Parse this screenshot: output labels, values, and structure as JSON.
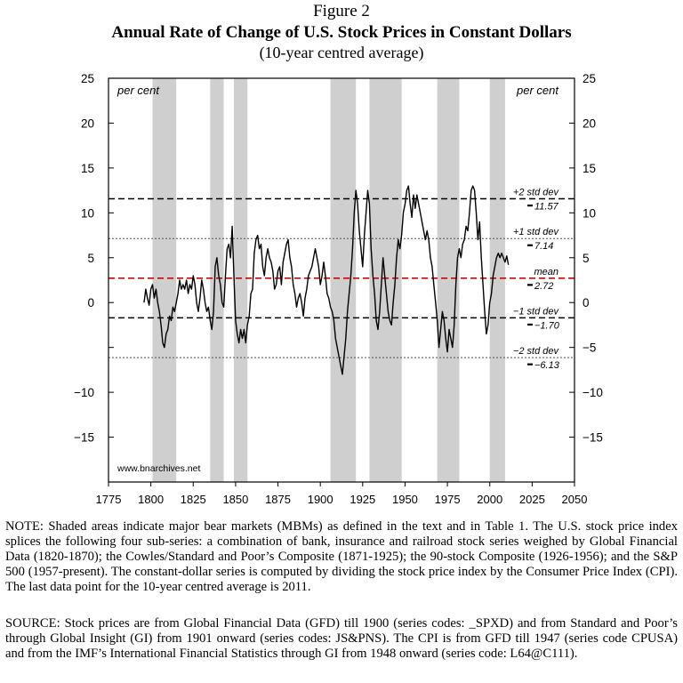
{
  "figure_label": "Figure 2",
  "chart_data": {
    "type": "line",
    "title": "Annual Rate of Change of U.S. Stock Prices in Constant Dollars",
    "subtitle": "(10-year centred average)",
    "xlabel": "",
    "ylabel_left": "per cent",
    "ylabel_right": "per cent",
    "xlim": [
      1775,
      2050
    ],
    "ylim": [
      -20,
      25
    ],
    "x_ticks": [
      "1775",
      "1800",
      "1825",
      "1850",
      "1875",
      "1900",
      "1925",
      "1950",
      "1975",
      "2000",
      "2025",
      "2050"
    ],
    "y_ticks_left": [
      "25",
      "20",
      "15",
      "10",
      "5",
      "0",
      "−10",
      "−15"
    ],
    "y_ticks_right": [
      "25",
      "20",
      "15",
      "10",
      "5",
      "0",
      "−5",
      "−10",
      "−15"
    ],
    "y_tick_values_left": [
      25,
      20,
      15,
      10,
      5,
      0,
      -10,
      -15
    ],
    "y_tick_values_right": [
      25,
      20,
      15,
      10,
      5,
      0,
      -5,
      -10,
      -15
    ],
    "y_tick_unlabeled": [
      -5
    ],
    "bear_markets": [
      [
        1801,
        1815
      ],
      [
        1835,
        1843
      ],
      [
        1849,
        1857
      ],
      [
        1906,
        1921
      ],
      [
        1929,
        1948
      ],
      [
        1969,
        1982
      ],
      [
        2000,
        2009
      ]
    ],
    "shade_color": "#cfcfcf",
    "reference_lines": [
      {
        "label": "+2 std dev",
        "value_label": "11.57",
        "value": 11.57,
        "style": "dash",
        "color": "#000000"
      },
      {
        "label": "+1 std dev",
        "value_label": "7.14",
        "value": 7.14,
        "style": "dot",
        "color": "#555555"
      },
      {
        "label": "mean",
        "value_label": "2.72",
        "value": 2.72,
        "style": "dash",
        "color": "#d40000"
      },
      {
        "label": "−1 std dev",
        "value_label": "−1.70",
        "value": -1.7,
        "style": "dash",
        "color": "#000000"
      },
      {
        "label": "−2 std dev",
        "value_label": "−6.13",
        "value": -6.13,
        "style": "dot",
        "color": "#555555"
      }
    ],
    "series": [
      {
        "line_color": "#000000",
        "points": [
          [
            1796,
            0
          ],
          [
            1797,
            1.5
          ],
          [
            1798,
            0.5
          ],
          [
            1799,
            -0.3
          ],
          [
            1800,
            1.5
          ],
          [
            1801,
            2
          ],
          [
            1802,
            0.5
          ],
          [
            1803,
            1.5
          ],
          [
            1804,
            0
          ],
          [
            1805,
            -1
          ],
          [
            1806,
            -2.5
          ],
          [
            1807,
            -4.5
          ],
          [
            1808,
            -5
          ],
          [
            1809,
            -3.5
          ],
          [
            1810,
            -3
          ],
          [
            1811,
            -1.5
          ],
          [
            1812,
            -2
          ],
          [
            1813,
            -0.5
          ],
          [
            1814,
            -1
          ],
          [
            1815,
            0
          ],
          [
            1816,
            1
          ],
          [
            1817,
            2.5
          ],
          [
            1818,
            1.5
          ],
          [
            1819,
            2
          ],
          [
            1820,
            1.5
          ],
          [
            1821,
            2.5
          ],
          [
            1822,
            1
          ],
          [
            1823,
            2
          ],
          [
            1824,
            1.5
          ],
          [
            1825,
            3
          ],
          [
            1826,
            2
          ],
          [
            1827,
            0
          ],
          [
            1828,
            -1
          ],
          [
            1829,
            0.5
          ],
          [
            1830,
            2.5
          ],
          [
            1831,
            1.5
          ],
          [
            1832,
            0
          ],
          [
            1833,
            -1
          ],
          [
            1834,
            -0.5
          ],
          [
            1835,
            -2
          ],
          [
            1836,
            -3
          ],
          [
            1837,
            -1
          ],
          [
            1838,
            4
          ],
          [
            1839,
            5
          ],
          [
            1840,
            3
          ],
          [
            1841,
            2
          ],
          [
            1842,
            0
          ],
          [
            1843,
            -0.5
          ],
          [
            1844,
            3
          ],
          [
            1845,
            6
          ],
          [
            1846,
            6.5
          ],
          [
            1847,
            5
          ],
          [
            1848,
            8.5
          ],
          [
            1849,
            3
          ],
          [
            1850,
            -2
          ],
          [
            1851,
            -3.5
          ],
          [
            1852,
            -4.5
          ],
          [
            1853,
            -3
          ],
          [
            1854,
            -4
          ],
          [
            1855,
            -3
          ],
          [
            1856,
            -4.5
          ],
          [
            1857,
            -2.5
          ],
          [
            1858,
            -1.5
          ],
          [
            1859,
            1
          ],
          [
            1860,
            1.5
          ],
          [
            1861,
            5.5
          ],
          [
            1862,
            7
          ],
          [
            1863,
            7.5
          ],
          [
            1864,
            6
          ],
          [
            1865,
            6.5
          ],
          [
            1866,
            4
          ],
          [
            1867,
            3
          ],
          [
            1868,
            5
          ],
          [
            1869,
            6
          ],
          [
            1870,
            5
          ],
          [
            1871,
            4.5
          ],
          [
            1872,
            3.5
          ],
          [
            1873,
            1.5
          ],
          [
            1874,
            2
          ],
          [
            1875,
            3.5
          ],
          [
            1876,
            4
          ],
          [
            1877,
            2
          ],
          [
            1878,
            4.5
          ],
          [
            1879,
            5.5
          ],
          [
            1880,
            6.5
          ],
          [
            1881,
            7
          ],
          [
            1882,
            5
          ],
          [
            1883,
            4
          ],
          [
            1884,
            2
          ],
          [
            1885,
            1
          ],
          [
            1886,
            -0.5
          ],
          [
            1887,
            0.5
          ],
          [
            1888,
            1
          ],
          [
            1889,
            0
          ],
          [
            1890,
            -1.5
          ],
          [
            1891,
            0.5
          ],
          [
            1892,
            1.5
          ],
          [
            1893,
            3
          ],
          [
            1894,
            3.5
          ],
          [
            1895,
            4
          ],
          [
            1896,
            5
          ],
          [
            1897,
            6
          ],
          [
            1898,
            5
          ],
          [
            1899,
            4
          ],
          [
            1900,
            2
          ],
          [
            1901,
            3
          ],
          [
            1902,
            4.5
          ],
          [
            1903,
            3
          ],
          [
            1904,
            1
          ],
          [
            1905,
            0.5
          ],
          [
            1906,
            -0.5
          ],
          [
            1907,
            -1
          ],
          [
            1908,
            -2
          ],
          [
            1909,
            -4
          ],
          [
            1910,
            -5
          ],
          [
            1911,
            -6
          ],
          [
            1912,
            -7
          ],
          [
            1913,
            -8
          ],
          [
            1914,
            -6
          ],
          [
            1915,
            -4
          ],
          [
            1916,
            -1
          ],
          [
            1917,
            1
          ],
          [
            1918,
            3
          ],
          [
            1919,
            6
          ],
          [
            1920,
            10
          ],
          [
            1921,
            12.5
          ],
          [
            1922,
            11
          ],
          [
            1923,
            8
          ],
          [
            1924,
            6
          ],
          [
            1925,
            4
          ],
          [
            1926,
            7.5
          ],
          [
            1927,
            10
          ],
          [
            1928,
            12.5
          ],
          [
            1929,
            11
          ],
          [
            1930,
            6
          ],
          [
            1931,
            3
          ],
          [
            1932,
            1
          ],
          [
            1933,
            -2
          ],
          [
            1934,
            -3
          ],
          [
            1935,
            -1
          ],
          [
            1936,
            2
          ],
          [
            1937,
            5
          ],
          [
            1938,
            3
          ],
          [
            1939,
            1
          ],
          [
            1940,
            -1
          ],
          [
            1941,
            -2
          ],
          [
            1942,
            -2.5
          ],
          [
            1943,
            0
          ],
          [
            1944,
            2
          ],
          [
            1945,
            5
          ],
          [
            1946,
            7
          ],
          [
            1947,
            6
          ],
          [
            1948,
            7.5
          ],
          [
            1949,
            10
          ],
          [
            1950,
            11
          ],
          [
            1951,
            12.5
          ],
          [
            1952,
            13
          ],
          [
            1953,
            11
          ],
          [
            1954,
            9.5
          ],
          [
            1955,
            12
          ],
          [
            1956,
            10.5
          ],
          [
            1957,
            12
          ],
          [
            1958,
            11
          ],
          [
            1959,
            10
          ],
          [
            1960,
            9
          ],
          [
            1961,
            8
          ],
          [
            1962,
            7
          ],
          [
            1963,
            8
          ],
          [
            1964,
            7
          ],
          [
            1965,
            5
          ],
          [
            1966,
            4
          ],
          [
            1967,
            2
          ],
          [
            1968,
            0
          ],
          [
            1969,
            -2
          ],
          [
            1970,
            -5
          ],
          [
            1971,
            -3
          ],
          [
            1972,
            -1
          ],
          [
            1973,
            -2
          ],
          [
            1974,
            -4
          ],
          [
            1975,
            -5.5
          ],
          [
            1976,
            -3
          ],
          [
            1977,
            -4
          ],
          [
            1978,
            -5
          ],
          [
            1979,
            -2.5
          ],
          [
            1980,
            2
          ],
          [
            1981,
            5
          ],
          [
            1982,
            6
          ],
          [
            1983,
            5
          ],
          [
            1984,
            6.5
          ],
          [
            1985,
            7
          ],
          [
            1986,
            8.5
          ],
          [
            1987,
            8
          ],
          [
            1988,
            10
          ],
          [
            1989,
            12.5
          ],
          [
            1990,
            13
          ],
          [
            1991,
            12.5
          ],
          [
            1992,
            10
          ],
          [
            1993,
            7
          ],
          [
            1994,
            9
          ],
          [
            1995,
            5
          ],
          [
            1996,
            2
          ],
          [
            1997,
            -1
          ],
          [
            1998,
            -3.5
          ],
          [
            1999,
            -2.5
          ],
          [
            2000,
            0
          ],
          [
            2001,
            1
          ],
          [
            2002,
            3
          ],
          [
            2003,
            4
          ],
          [
            2004,
            5
          ],
          [
            2005,
            5.5
          ],
          [
            2006,
            5
          ],
          [
            2007,
            5.5
          ],
          [
            2008,
            5
          ],
          [
            2009,
            4.5
          ],
          [
            2010,
            5.2
          ],
          [
            2011,
            4.2
          ]
        ]
      }
    ],
    "watermark": "www.bnarchives.net",
    "grid": false
  },
  "note": "NOTE: Shaded areas indicate major bear markets (MBMs) as defined in the text and in Table 1. The U.S. stock price index splices the following four sub-series: a combination of bank, insurance and railroad stock series weighed by Global Financial Data (1820-1870); the Cowles/Standard and Poor’s Composite (1871-1925); the 90-stock Composite (1926-1956); and the S&P 500 (1957-present). The constant-dollar series is computed by dividing the stock price index by the Consumer Price Index (CPI). The last data point for the 10-year centred average is 2011.",
  "source": "SOURCE: Stock prices are from Global Financial Data (GFD) till 1900 (series codes: _SPXD) and from Standard and Poor’s through Global Insight (GI) from 1901 onward (series codes: JS&PNS). The CPI is from GFD till 1947 (series code CPUSA) and from the IMF’s International Financial Statistics through GI from 1948 onward (series code: L64@C111)."
}
